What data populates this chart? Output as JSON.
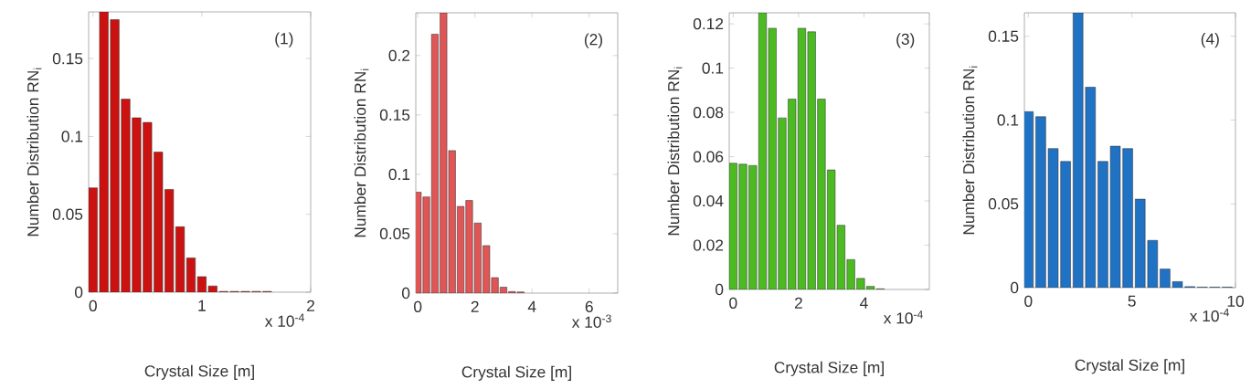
{
  "chart_data": [
    {
      "type": "bar",
      "x": [
        0,
        0.1,
        0.2,
        0.3,
        0.4,
        0.5,
        0.6,
        0.7,
        0.8,
        0.9,
        1.0,
        1.1,
        1.2,
        1.3,
        1.4,
        1.5,
        1.6
      ],
      "values": [
        0.067,
        0.18,
        0.175,
        0.124,
        0.112,
        0.109,
        0.09,
        0.066,
        0.042,
        0.022,
        0.01,
        0.004,
        0.0005,
        0.0005,
        0.0005,
        0.0005,
        0.0005
      ],
      "color": "#cc1111",
      "xlim": [
        -0.04,
        2
      ],
      "ylim": [
        0,
        0.18
      ],
      "xticks": [
        0,
        1,
        2
      ],
      "yticks": [
        0,
        0.05,
        0.1,
        0.15
      ],
      "xlabel": "Crystal Size  [m]",
      "ylabel": "Number Distribution RN$_{i}$",
      "annotations": [
        "(1)",
        "x 10$^{-4}$"
      ]
    },
    {
      "type": "bar",
      "x": [
        0,
        0.3,
        0.6,
        0.9,
        1.2,
        1.5,
        1.8,
        2.1,
        2.4,
        2.7,
        3.0,
        3.3,
        3.6
      ],
      "values": [
        0.085,
        0.081,
        0.218,
        0.236,
        0.12,
        0.073,
        0.078,
        0.059,
        0.04,
        0.013,
        0.005,
        0.0013,
        0.001
      ],
      "color": "#e05555",
      "xlim": [
        -0.07,
        7
      ],
      "ylim": [
        0,
        0.236
      ],
      "xticks": [
        0,
        2,
        4,
        6
      ],
      "yticks": [
        0,
        0.05,
        0.1,
        0.15,
        0.2
      ],
      "xlabel": "Crystal Size  [m]",
      "ylabel": "Number Distribution RN$_{i}$",
      "annotations": [
        "(2)",
        "x 10$^{-3}$"
      ]
    },
    {
      "type": "bar",
      "x": [
        0,
        0.3,
        0.6,
        0.9,
        1.2,
        1.5,
        1.8,
        2.1,
        2.4,
        2.7,
        3.0,
        3.3,
        3.6,
        3.9,
        4.2,
        4.5
      ],
      "values": [
        0.057,
        0.0566,
        0.056,
        0.125,
        0.118,
        0.0775,
        0.086,
        0.118,
        0.1164,
        0.086,
        0.054,
        0.029,
        0.0135,
        0.005,
        0.0014,
        0.0003
      ],
      "color": "#4cbb22",
      "xlim": [
        -0.12,
        6
      ],
      "ylim": [
        0,
        0.125
      ],
      "xticks": [
        0,
        2,
        4
      ],
      "yticks": [
        0,
        0.02,
        0.04,
        0.06,
        0.08,
        0.1,
        0.12
      ],
      "xlabel": "Crystal Size  [m]",
      "ylabel": "Number Distribution RN$_{i}$",
      "annotations": [
        "(3)",
        "x 10$^{-4}$"
      ]
    },
    {
      "type": "bar",
      "x": [
        0,
        0.6,
        1.2,
        1.8,
        2.4,
        3.0,
        3.6,
        4.2,
        4.8,
        5.4,
        6.0,
        6.6,
        7.2,
        7.8,
        8.4,
        9.0,
        9.6
      ],
      "values": [
        0.105,
        0.102,
        0.083,
        0.0753,
        0.164,
        0.1196,
        0.0753,
        0.0844,
        0.083,
        0.0528,
        0.0282,
        0.0111,
        0.0036,
        0.0006,
        0.0003,
        0.0003,
        0.0003
      ],
      "color": "#1f72c4",
      "xlim": [
        -0.19,
        10
      ],
      "ylim": [
        0,
        0.164
      ],
      "xticks": [
        0,
        5,
        10
      ],
      "yticks": [
        0,
        0.05,
        0.1,
        0.15
      ],
      "xlabel": "Crystal Size  [m]",
      "ylabel": "Number Distribution RN$_{i}$",
      "annotations": [
        "(4)",
        "x 10$^{-4}$"
      ]
    }
  ]
}
